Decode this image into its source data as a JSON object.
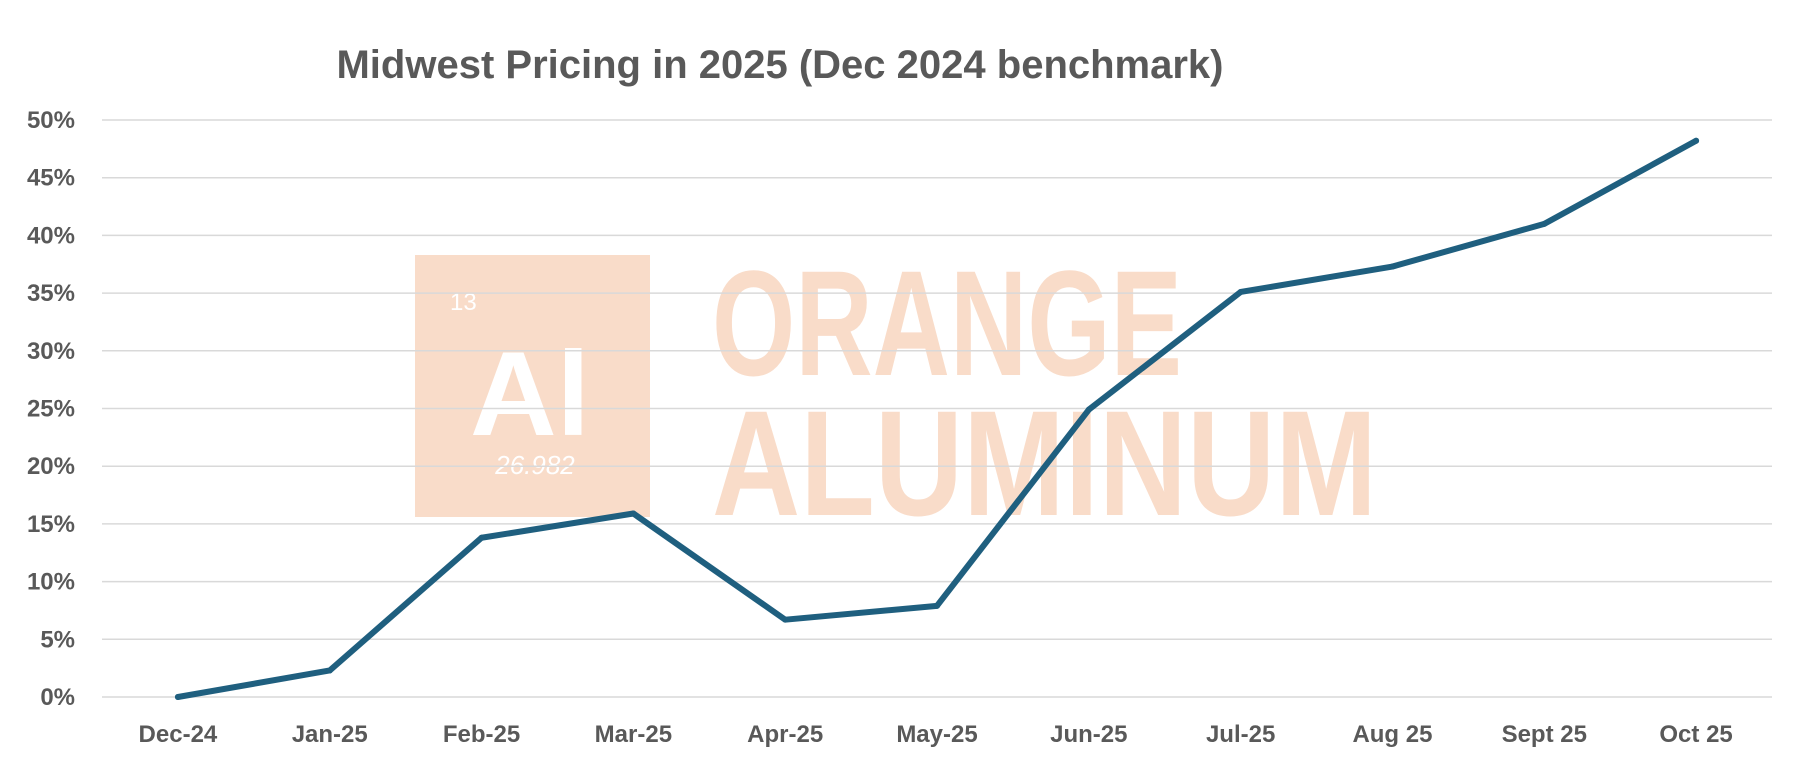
{
  "chart_data": {
    "type": "line",
    "title": "Midwest Pricing in 2025 (Dec 2024 benchmark)",
    "xlabel": "",
    "ylabel": "",
    "categories": [
      "Dec-24",
      "Jan-25",
      "Feb-25",
      "Mar-25",
      "Apr-25",
      "May-25",
      "Jun-25",
      "Jul-25",
      "Aug 25",
      "Sept 25",
      "Oct 25"
    ],
    "series": [
      {
        "name": "Midwest Pricing",
        "values": [
          0,
          2.3,
          13.8,
          15.9,
          6.7,
          7.9,
          24.9,
          35.1,
          37.3,
          41.0,
          48.2
        ],
        "color": "#1f5f7f"
      }
    ],
    "ylim": [
      0,
      50
    ],
    "yticks": [
      0,
      5,
      10,
      15,
      20,
      25,
      30,
      35,
      40,
      45,
      50
    ],
    "ytick_labels": [
      "0%",
      "5%",
      "10%",
      "15%",
      "20%",
      "25%",
      "30%",
      "35%",
      "40%",
      "45%",
      "50%"
    ],
    "grid": true,
    "legend": "none"
  },
  "watermark": {
    "atomic_number": "13",
    "symbol": "Al",
    "atomic_mass": "26.982",
    "line1": "ORANGE",
    "line2": "ALUMINUM",
    "color": "#f9dcc9"
  }
}
